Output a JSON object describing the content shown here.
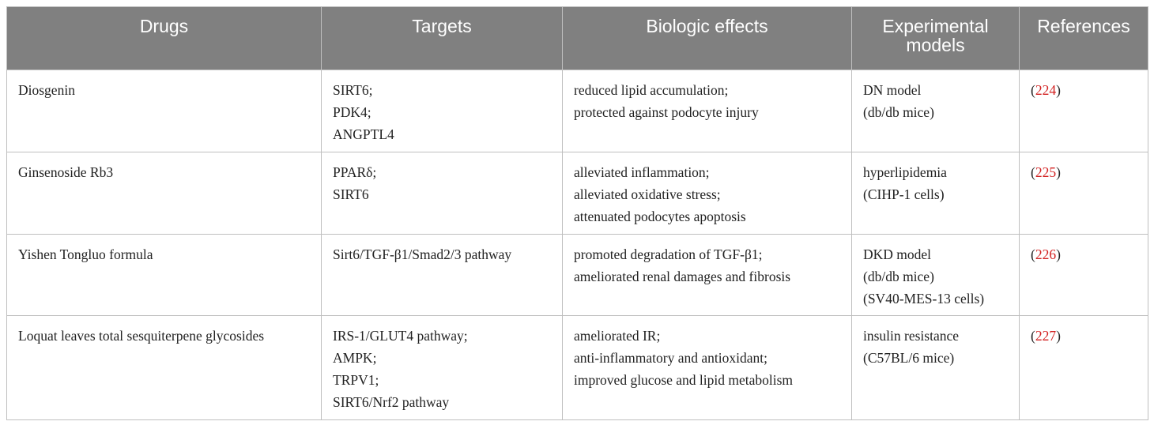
{
  "table": {
    "header": [
      "Drugs",
      "Targets",
      "Biologic effects",
      "Experimental models",
      "References"
    ],
    "rows": [
      [
        [
          "Diosgenin"
        ],
        [
          "SIRT6;",
          "PDK4;",
          "ANGPTL4"
        ],
        [
          "reduced lipid accumulation;",
          "protected against podocyte injury"
        ],
        [
          "DN model",
          "(db/db mice)"
        ],
        [
          "(",
          "224",
          ")"
        ]
      ],
      [
        [
          "Ginsenoside Rb3"
        ],
        [
          "PPARδ;",
          "SIRT6"
        ],
        [
          "alleviated inflammation;",
          "alleviated oxidative stress;",
          "attenuated podocytes apoptosis"
        ],
        [
          "hyperlipidemia",
          "(CIHP-1 cells)"
        ],
        [
          "(",
          "225",
          ")"
        ]
      ],
      [
        [
          "Yishen Tongluo formula"
        ],
        [
          "Sirt6/TGF-β1/Smad2/3 pathway"
        ],
        [
          "promoted degradation of TGF-β1;",
          "ameliorated renal damages and fibrosis"
        ],
        [
          "DKD model",
          "(db/db mice)",
          "(SV40-MES-13 cells)"
        ],
        [
          "(",
          "226",
          ")"
        ]
      ],
      [
        [
          "Loquat leaves total sesquiterpene glycosides"
        ],
        [
          "IRS-1/GLUT4 pathway;",
          "AMPK;",
          "TRPV1;",
          "SIRT6/Nrf2 pathway"
        ],
        [
          "ameliorated IR;",
          "anti-inflammatory and antioxidant;",
          "improved glucose and lipid metabolism"
        ],
        [
          "insulin resistance",
          "(C57BL/6 mice)"
        ],
        [
          "(",
          "227",
          ")"
        ]
      ]
    ]
  }
}
